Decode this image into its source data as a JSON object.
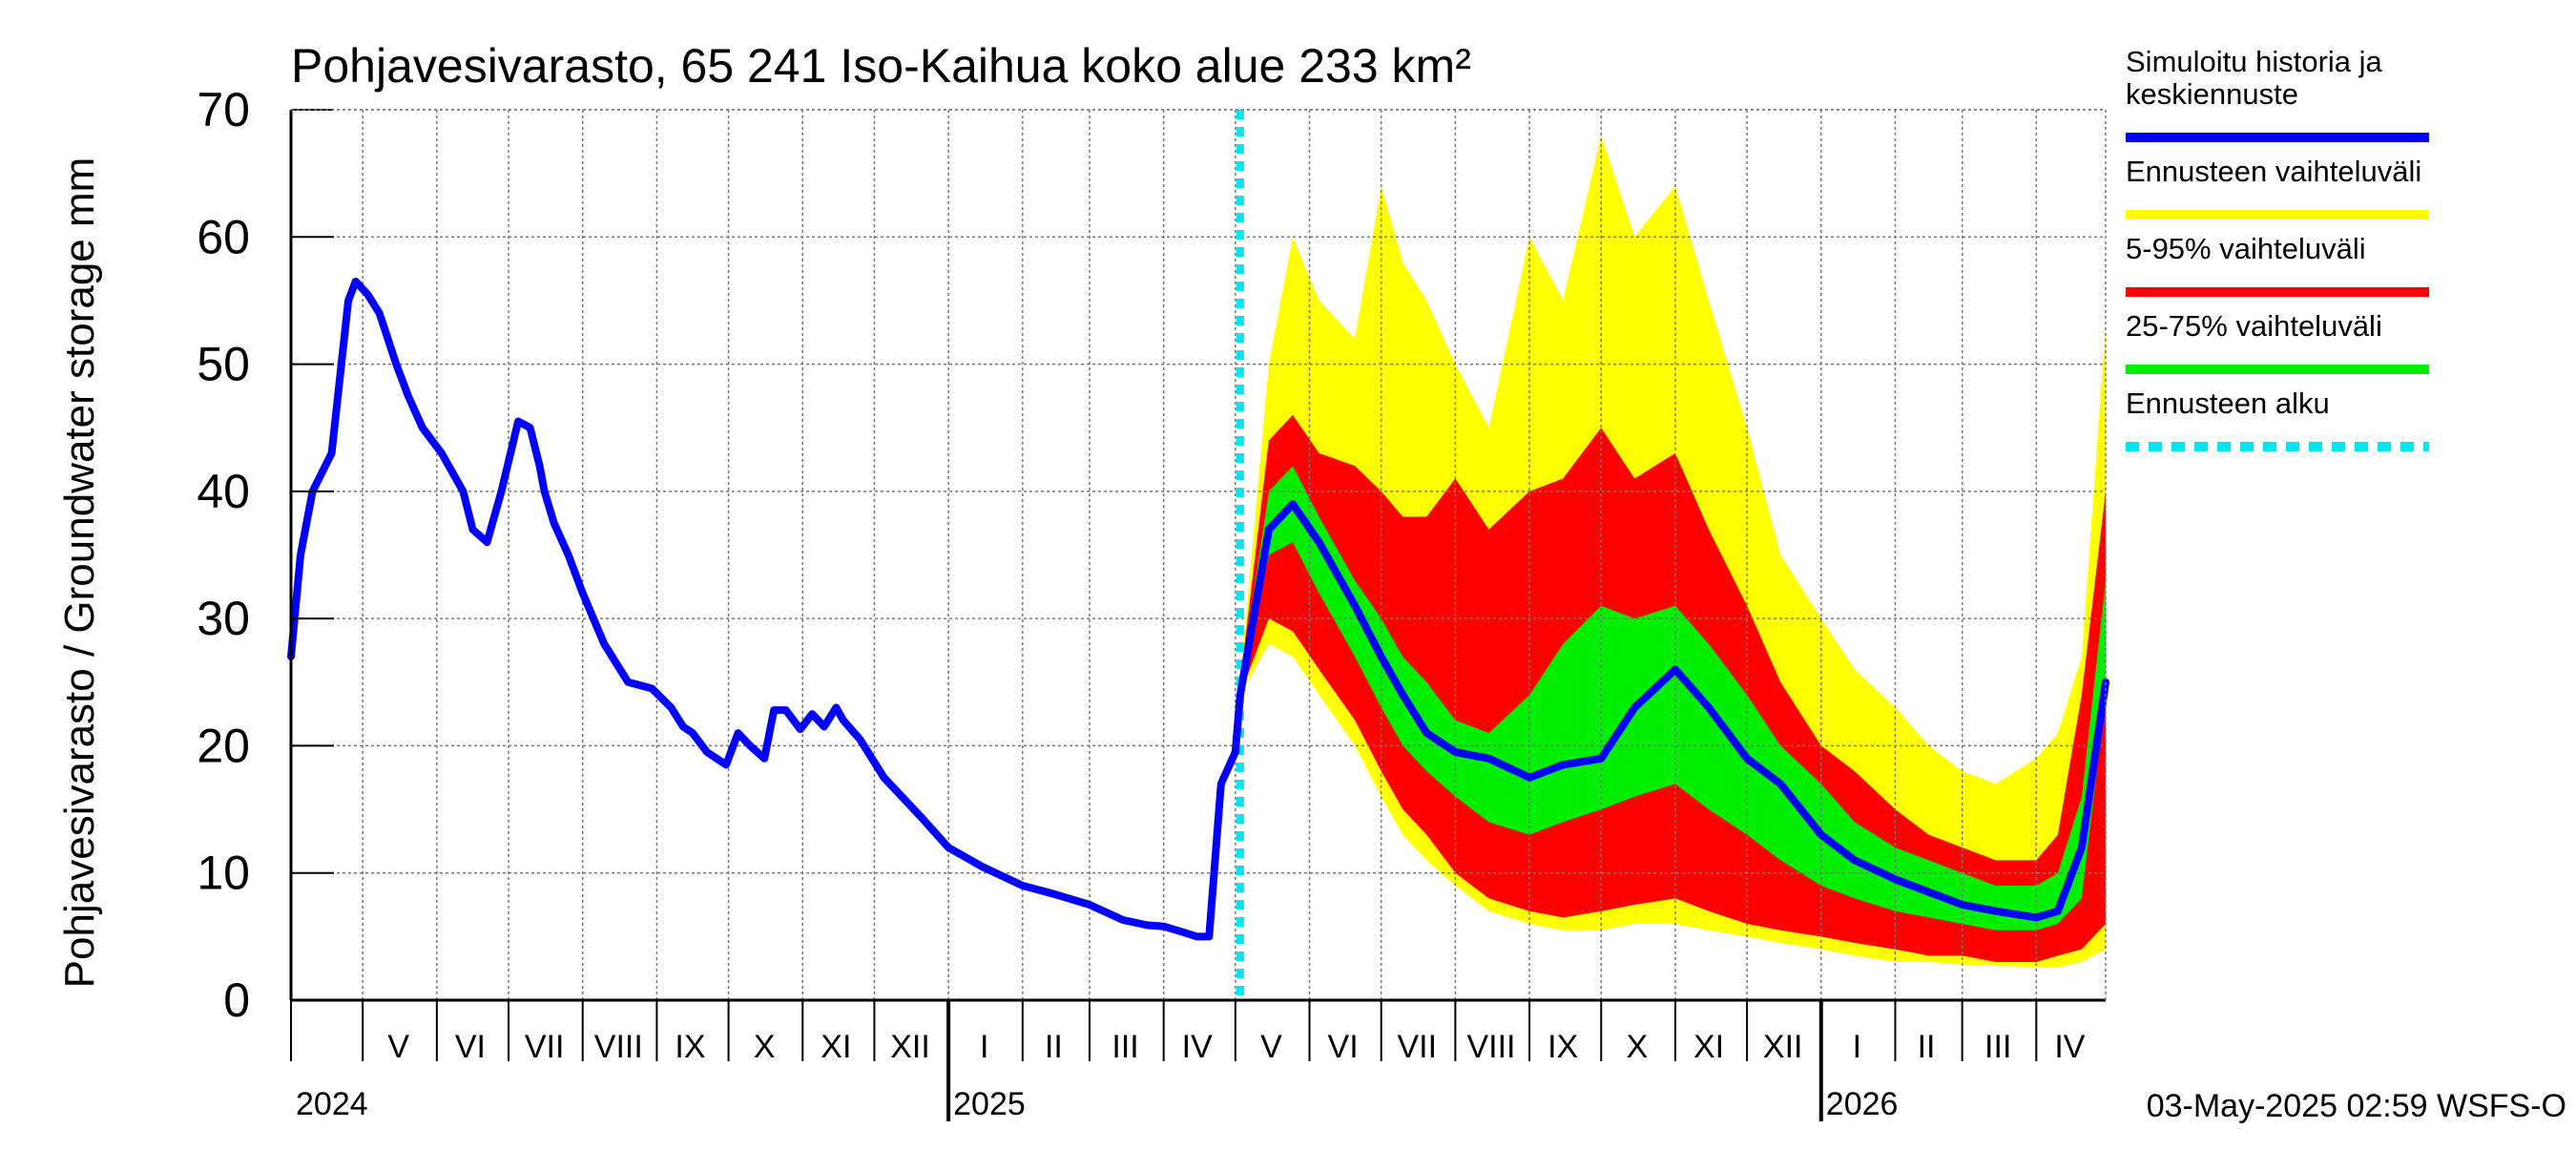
{
  "chart_data": {
    "type": "area",
    "title": "Pohjavesivarasto, 65 241 Iso-Kaihua koko alue 233 km²",
    "ylabel": "Pohjavesivarasto / Groundwater storage   mm",
    "ylim": [
      0,
      70
    ],
    "y_ticks": [
      "0",
      "10",
      "20",
      "30",
      "40",
      "50",
      "60",
      "70"
    ],
    "x_start": "2024-04-01",
    "x_end": "2026-04-30",
    "month_labels": [
      "V",
      "VI",
      "VII",
      "VIII",
      "IX",
      "X",
      "XI",
      "XII",
      "I",
      "II",
      "III",
      "IV",
      "V",
      "VI",
      "VII",
      "VIII",
      "IX",
      "X",
      "XI",
      "XII",
      "I",
      "II",
      "III",
      "IV"
    ],
    "month_label_dates": [
      "2024-05-16",
      "2024-06-15",
      "2024-07-16",
      "2024-08-16",
      "2024-09-15",
      "2024-10-16",
      "2024-11-15",
      "2024-12-16",
      "2025-01-16",
      "2025-02-14",
      "2025-03-16",
      "2025-04-15",
      "2025-05-16",
      "2025-06-15",
      "2025-07-16",
      "2025-08-16",
      "2025-09-15",
      "2025-10-16",
      "2025-11-15",
      "2025-12-16",
      "2026-01-16",
      "2026-02-14",
      "2026-03-16",
      "2026-04-15"
    ],
    "year_labels": [
      "2024",
      "2025",
      "2026"
    ],
    "forecast_start": "2025-05-03",
    "grid": true,
    "legend_position": "right",
    "timestamp": "03-May-2025 02:59 WSFS-O",
    "legend": [
      {
        "label": "Simuloitu historia ja keskiennuste",
        "color": "#0000ff",
        "style": "solid"
      },
      {
        "label": "Ennusteen vaihteluväli",
        "color": "#ffff00",
        "style": "solid"
      },
      {
        "label": "5-95% vaihteluväli",
        "color": "#ff0000",
        "style": "solid"
      },
      {
        "label": "25-75% vaihteluväli",
        "color": "#00ee00",
        "style": "solid"
      },
      {
        "label": "Ennusteen alku",
        "color": "#00e5ee",
        "style": "dashed"
      }
    ],
    "colors": {
      "history": "#0000ff",
      "full_range": "#ffff00",
      "p5_95": "#ff0000",
      "p25_75": "#00ee00",
      "forecast_start": "#00e5ee"
    },
    "history": {
      "x": [
        "2024-04-01",
        "2024-04-05",
        "2024-04-10",
        "2024-04-18",
        "2024-04-25",
        "2024-04-28",
        "2024-05-03",
        "2024-05-08",
        "2024-05-15",
        "2024-05-20",
        "2024-05-26",
        "2024-06-03",
        "2024-06-12",
        "2024-06-16",
        "2024-06-22",
        "2024-06-28",
        "2024-07-05",
        "2024-07-10",
        "2024-07-14",
        "2024-07-16",
        "2024-07-20",
        "2024-07-26",
        "2024-08-01",
        "2024-08-10",
        "2024-08-20",
        "2024-08-30",
        "2024-09-07",
        "2024-09-12",
        "2024-09-16",
        "2024-09-22",
        "2024-09-30",
        "2024-10-05",
        "2024-10-10",
        "2024-10-16",
        "2024-10-20",
        "2024-10-25",
        "2024-10-31",
        "2024-11-05",
        "2024-11-10",
        "2024-11-15",
        "2024-11-18",
        "2024-11-25",
        "2024-12-05",
        "2024-12-20",
        "2025-01-01",
        "2025-01-15",
        "2025-02-01",
        "2025-02-15",
        "2025-03-01",
        "2025-03-15",
        "2025-03-25",
        "2025-04-01",
        "2025-04-10",
        "2025-04-15",
        "2025-04-20",
        "2025-04-25",
        "2025-05-01",
        "2025-05-03"
      ],
      "y": [
        27,
        35,
        40,
        43,
        55,
        56.5,
        55.5,
        54,
        50,
        47.5,
        45,
        43,
        40,
        37,
        36,
        40,
        45.5,
        45,
        42,
        40,
        37.5,
        35,
        32,
        28,
        25,
        24.5,
        23,
        21.5,
        21,
        19.5,
        18.5,
        21,
        20,
        19,
        22.8,
        22.8,
        21.3,
        22.5,
        21.5,
        23,
        22,
        20.5,
        17.5,
        14.5,
        12,
        10.5,
        9,
        8.3,
        7.5,
        6.3,
        5.9,
        5.8,
        5.3,
        5.0,
        5.0,
        17,
        19.5,
        24
      ]
    },
    "forecast_x": [
      "2025-05-03",
      "2025-05-15",
      "2025-05-25",
      "2025-06-05",
      "2025-06-20",
      "2025-07-01",
      "2025-07-10",
      "2025-07-20",
      "2025-08-01",
      "2025-08-15",
      "2025-09-01",
      "2025-09-15",
      "2025-10-01",
      "2025-10-15",
      "2025-11-01",
      "2025-11-15",
      "2025-12-01",
      "2025-12-15",
      "2026-01-01",
      "2026-01-15",
      "2026-02-01",
      "2026-02-15",
      "2026-03-01",
      "2026-03-15",
      "2026-04-01",
      "2026-04-10",
      "2026-04-20",
      "2026-04-30"
    ],
    "forecast_series": {
      "max": [
        25,
        50,
        60,
        55,
        52,
        64,
        58,
        55,
        50,
        45,
        60,
        55,
        68,
        60,
        64,
        55,
        45,
        35,
        30,
        26,
        23,
        20,
        18,
        17,
        19,
        21,
        27,
        53
      ],
      "p95": [
        25,
        44,
        46,
        43,
        42,
        40,
        38,
        38,
        41,
        37,
        40,
        41,
        45,
        41,
        43,
        37,
        31,
        25,
        20,
        18,
        15,
        13,
        12,
        11,
        11,
        13,
        24,
        40
      ],
      "p75": [
        25,
        40,
        42,
        38,
        33,
        30,
        27,
        25,
        22,
        21,
        24,
        28,
        31,
        30,
        31,
        28,
        24,
        20,
        17,
        14,
        12,
        11,
        10,
        9,
        9,
        10,
        16,
        33
      ],
      "median": [
        24,
        37,
        39,
        36,
        31,
        27,
        24,
        21,
        19.5,
        19,
        17.5,
        18.5,
        19,
        23,
        26,
        23,
        19,
        17,
        13,
        11,
        9.5,
        8.5,
        7.5,
        7,
        6.5,
        7,
        12,
        25
      ],
      "p25": [
        24,
        35,
        36,
        32,
        27,
        23,
        20,
        18,
        16,
        14,
        13,
        14,
        15,
        16,
        17,
        15,
        13,
        11,
        9,
        8,
        7,
        6.5,
        6,
        5.5,
        5.5,
        6,
        8,
        24
      ],
      "p5": [
        24,
        30,
        29,
        26,
        22,
        18,
        15,
        13,
        10,
        8,
        7,
        6.5,
        7,
        7.5,
        8,
        7,
        6,
        5.5,
        5,
        4.5,
        4,
        3.5,
        3.5,
        3,
        3,
        3.5,
        4,
        6
      ],
      "min": [
        24,
        28,
        27,
        24,
        20,
        16,
        13,
        11,
        9,
        7,
        6,
        5.5,
        5.5,
        6,
        6,
        5.5,
        5,
        4.5,
        4,
        3.5,
        3,
        3,
        2.8,
        2.7,
        2.6,
        2.6,
        3,
        4
      ]
    }
  }
}
